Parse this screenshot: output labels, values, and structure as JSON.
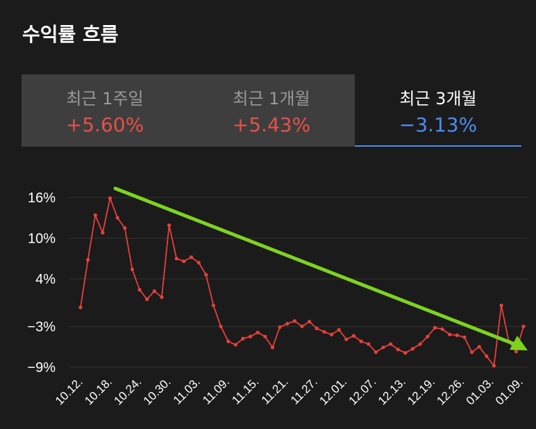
{
  "title": "수익률 흐름",
  "tabs": [
    {
      "label": "최근 1주일",
      "value": "+5.60%",
      "active": false
    },
    {
      "label": "최근 1개월",
      "value": "+5.43%",
      "active": false
    },
    {
      "label": "최근 3개월",
      "value": "−3.13%",
      "active": true
    }
  ],
  "colors": {
    "positive": "#e8504a",
    "negative": "#4a8ef0",
    "line": "#e8403c",
    "trend_arrow": "#7ed321",
    "grid": "#333333"
  },
  "chart_data": {
    "type": "line",
    "y_ticks": [
      {
        "value": 16,
        "label": "16%"
      },
      {
        "value": 10,
        "label": "10%"
      },
      {
        "value": 4,
        "label": "4%"
      },
      {
        "value": -3,
        "label": "−3%"
      },
      {
        "value": -9,
        "label": "−9%"
      }
    ],
    "x_ticks": [
      "10.12.",
      "10.18.",
      "10.24.",
      "10.30.",
      "11.03.",
      "11.09.",
      "11.15.",
      "11.21.",
      "11.27.",
      "12.01.",
      "12.07.",
      "12.13.",
      "12.19.",
      "12.26.",
      "01.03.",
      "01.09."
    ],
    "series": [
      {
        "values": [
          -0.2,
          6.8,
          13.4,
          10.8,
          15.9,
          13.0,
          11.5,
          5.4,
          2.4,
          1.0,
          2.2,
          1.3,
          11.9,
          7.0,
          6.6,
          7.2,
          6.4,
          4.6,
          0.1,
          -3.0,
          -5.2,
          -5.7,
          -4.8,
          -4.5,
          -3.9,
          -4.5,
          -6.1,
          -3.1,
          -2.6,
          -2.2,
          -3.0,
          -2.3,
          -3.3,
          -3.8,
          -4.2,
          -3.5,
          -4.9,
          -4.4,
          -5.2,
          -5.6,
          -6.8,
          -6.1,
          -5.6,
          -6.4,
          -6.9,
          -6.3,
          -5.6,
          -4.5,
          -3.2,
          -3.4,
          -4.2,
          -4.3,
          -4.6,
          -6.8,
          -6.0,
          -7.4,
          -8.8,
          0.1,
          -5.2,
          -6.7,
          -3.0
        ]
      }
    ],
    "ylim": [
      -9,
      16
    ]
  }
}
